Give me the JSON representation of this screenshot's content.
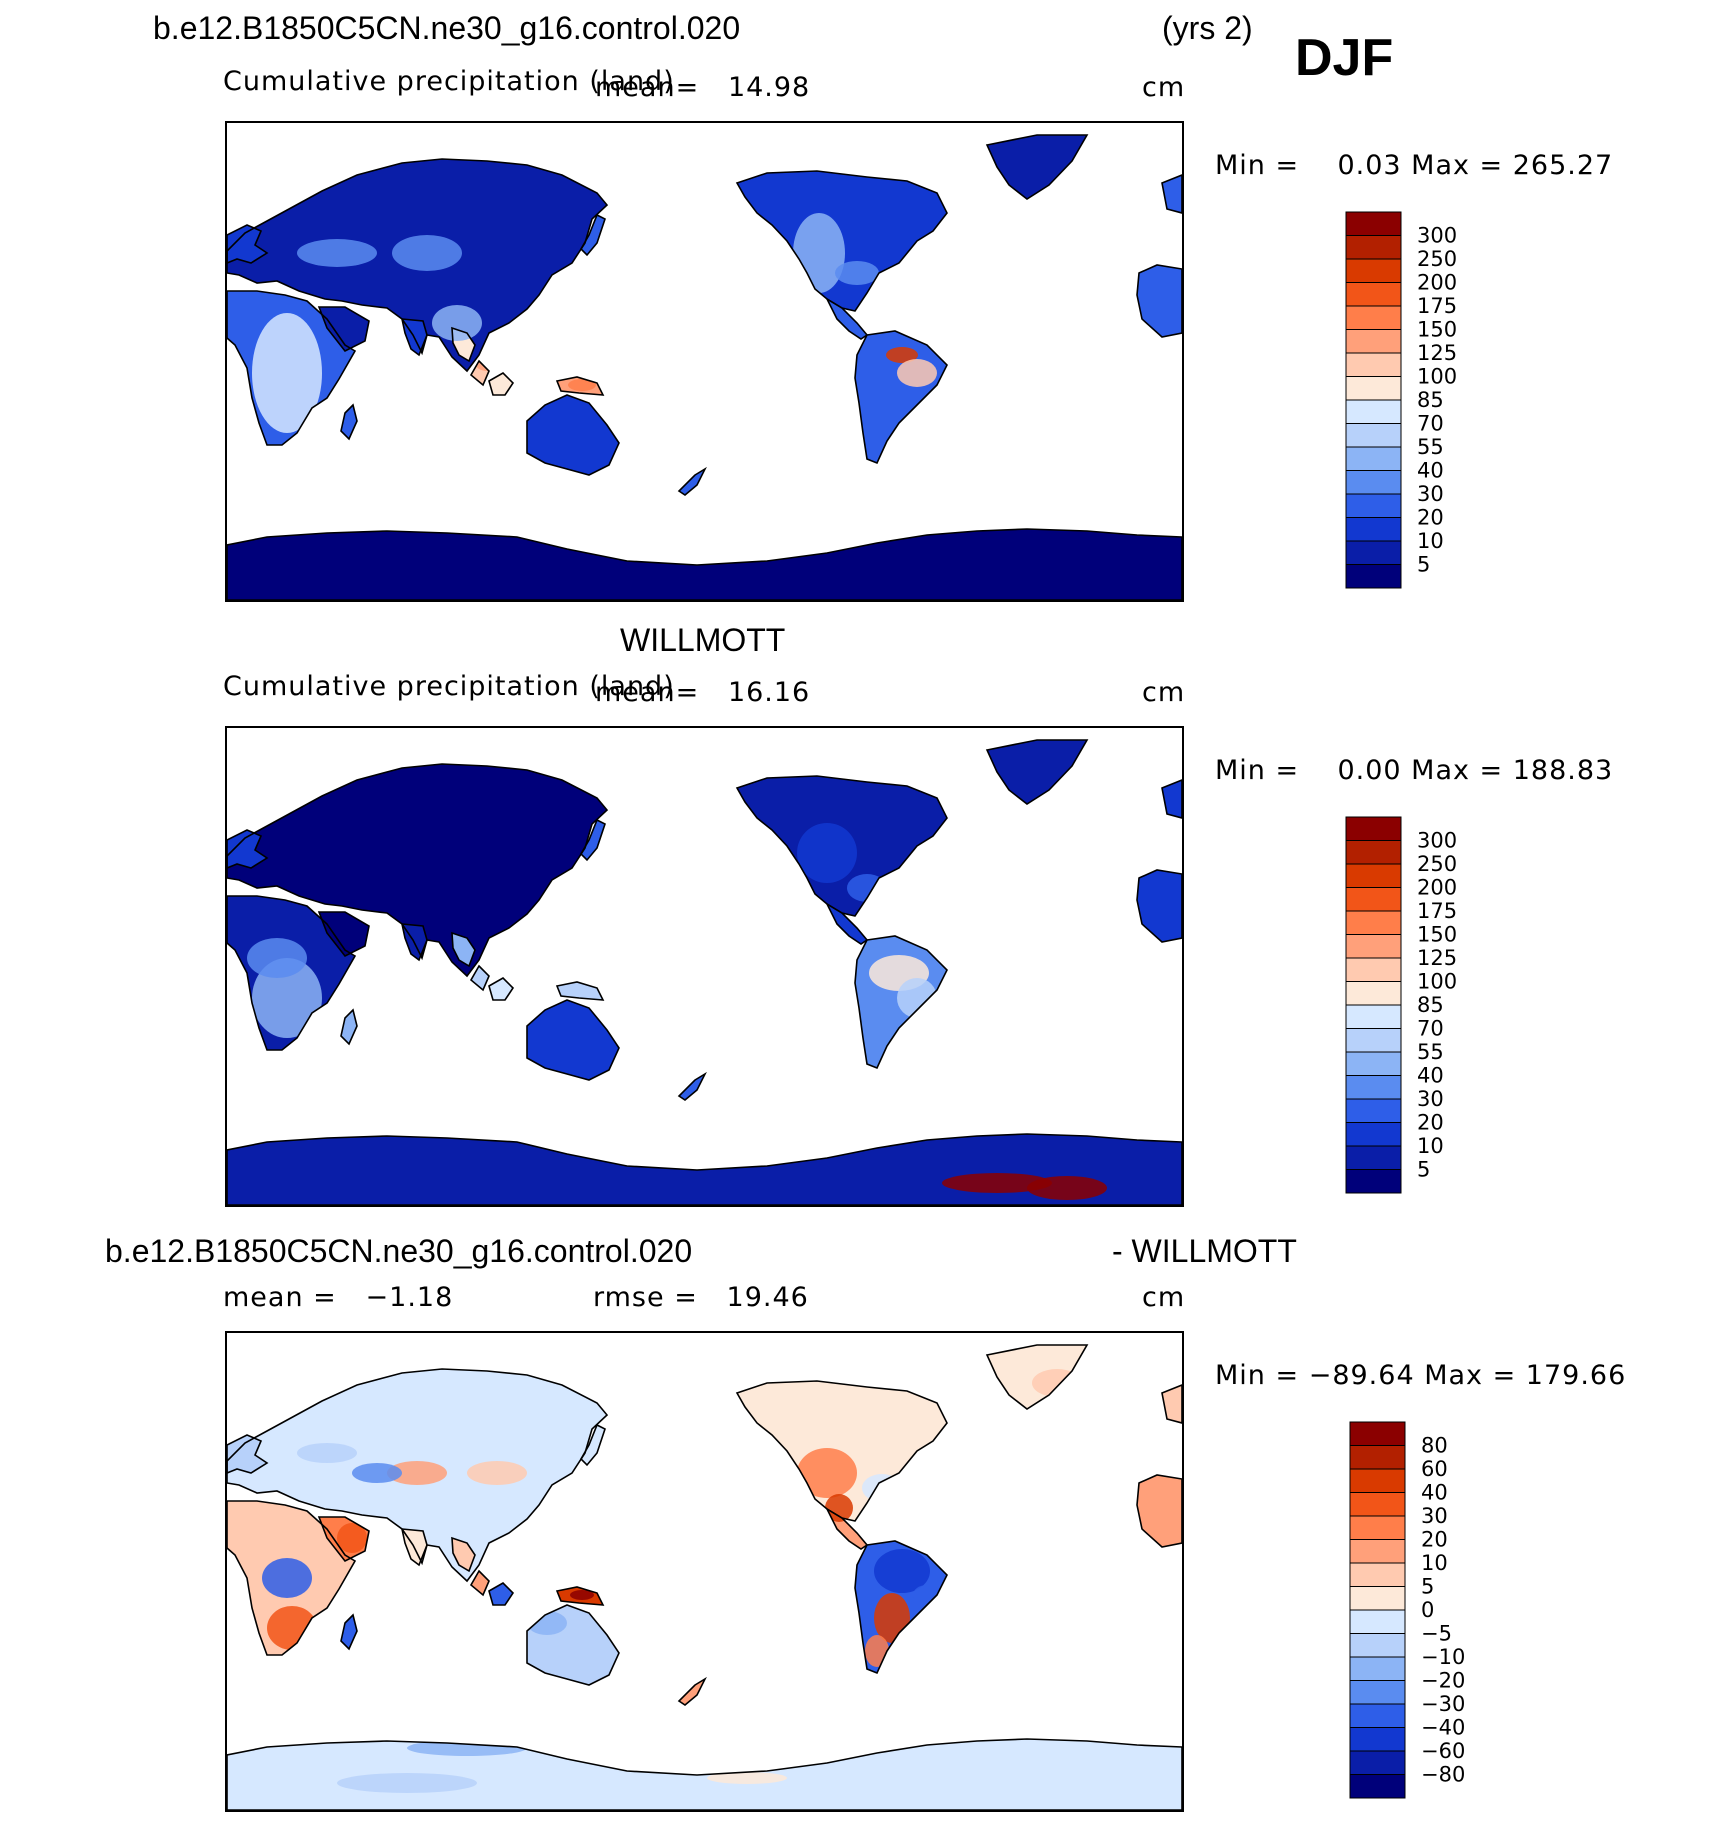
{
  "header": {
    "case_title": "b.e12.B1850C5CN.ne30_g16.control.020",
    "years": "(yrs 2)",
    "season": "DJF"
  },
  "panels": [
    {
      "title": "",
      "subtitle": "Cumulative precipitation (land)",
      "stat1": "mean=   14.98",
      "stat2": "",
      "units": "cm",
      "minmax": "Min =    0.03 Max = 265.27"
    },
    {
      "title": "WILLMOTT",
      "subtitle": "Cumulative precipitation (land)",
      "stat1": "mean=   16.16",
      "stat2": "",
      "units": "cm",
      "minmax": "Min =    0.00 Max = 188.83"
    },
    {
      "title": "b.e12.B1850C5CN.ne30_g16.control.020",
      "title_right": "- WILLMOTT",
      "subtitle": "",
      "stat1": "mean =   −1.18",
      "stat2": "rmse =   19.46",
      "units": "cm",
      "minmax": "Min = −89.64 Max = 179.66"
    }
  ],
  "colors": {
    "ocean": "#ffffff",
    "frame": "#000000"
  },
  "chart_data": [
    {
      "type": "heatmap",
      "title": "b.e12.B1850C5CN.ne30_g16.control.020",
      "variable": "Cumulative precipitation (land)",
      "units": "cm",
      "mean": 14.98,
      "min": 0.03,
      "max": 265.27,
      "projection": "cylindrical equidistant, Pacific-centered",
      "colorbar": {
        "levels": [
          "300",
          "250",
          "200",
          "175",
          "150",
          "125",
          "100",
          "85",
          "70",
          "55",
          "40",
          "30",
          "20",
          "10",
          "5"
        ],
        "colors": [
          "#8b0000",
          "#b22000",
          "#d93a00",
          "#f25518",
          "#ff7e4a",
          "#ffa07a",
          "#ffcab0",
          "#fde9d9",
          "#d6e8ff",
          "#b7d1fa",
          "#8cb4f5",
          "#5a8cf0",
          "#2e5ee8",
          "#1238d0",
          "#0a1ea8",
          "#00007a"
        ]
      }
    },
    {
      "type": "heatmap",
      "title": "WILLMOTT",
      "variable": "Cumulative precipitation (land)",
      "units": "cm",
      "mean": 16.16,
      "min": 0.0,
      "max": 188.83,
      "projection": "cylindrical equidistant, Pacific-centered",
      "colorbar": {
        "levels": [
          "300",
          "250",
          "200",
          "175",
          "150",
          "125",
          "100",
          "85",
          "70",
          "55",
          "40",
          "30",
          "20",
          "10",
          "5"
        ],
        "colors": [
          "#8b0000",
          "#b22000",
          "#d93a00",
          "#f25518",
          "#ff7e4a",
          "#ffa07a",
          "#ffcab0",
          "#fde9d9",
          "#d6e8ff",
          "#b7d1fa",
          "#8cb4f5",
          "#5a8cf0",
          "#2e5ee8",
          "#1238d0",
          "#0a1ea8",
          "#00007a"
        ]
      }
    },
    {
      "type": "heatmap",
      "title": "b.e12.B1850C5CN.ne30_g16.control.020 - WILLMOTT",
      "units": "cm",
      "mean": -1.18,
      "rmse": 19.46,
      "min": -89.64,
      "max": 179.66,
      "projection": "cylindrical equidistant, Pacific-centered",
      "colorbar": {
        "levels": [
          "80",
          "60",
          "40",
          "30",
          "20",
          "10",
          "5",
          "0",
          "−5",
          "−10",
          "−20",
          "−30",
          "−40",
          "−60",
          "−80"
        ],
        "colors": [
          "#8b0000",
          "#b22000",
          "#d93a00",
          "#f25518",
          "#ff7e4a",
          "#ffa07a",
          "#ffcab0",
          "#fde9d9",
          "#d6e8ff",
          "#b7d1fa",
          "#8cb4f5",
          "#5a8cf0",
          "#2e5ee8",
          "#1238d0",
          "#0a1ea8",
          "#00007a"
        ]
      }
    }
  ]
}
